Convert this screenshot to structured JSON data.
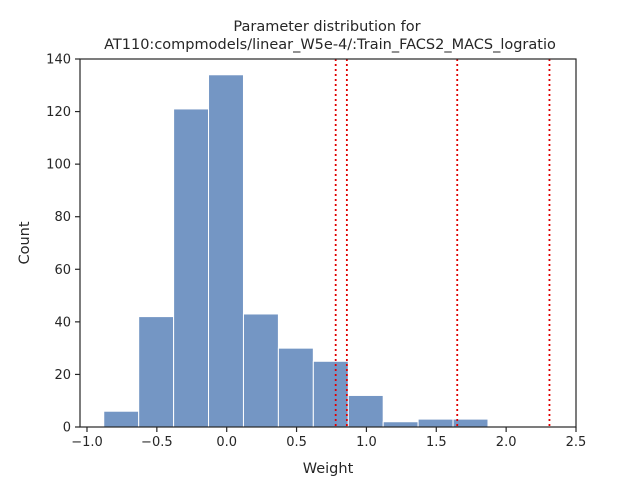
{
  "chart_data": {
    "type": "bar",
    "title": "Parameter distribution for",
    "subtitle": "AT110:compmodels/linear_W5e-4/:Train_FACS2_MACS_logratio",
    "xlabel": "Weight",
    "ylabel": "Count",
    "xlim": [
      -1.05,
      2.5
    ],
    "ylim": [
      0,
      140
    ],
    "xticks": [
      -1.0,
      -0.5,
      0.0,
      0.5,
      1.0,
      1.5,
      2.0,
      2.5
    ],
    "xtick_labels": [
      "−1.0",
      "−0.5",
      "0.0",
      "0.5",
      "1.0",
      "1.5",
      "2.0",
      "2.5"
    ],
    "yticks": [
      0,
      20,
      40,
      60,
      80,
      100,
      120,
      140
    ],
    "ytick_labels": [
      "0",
      "20",
      "40",
      "60",
      "80",
      "100",
      "120",
      "140"
    ],
    "bin_edges": [
      -0.88,
      -0.63,
      -0.38,
      -0.13,
      0.12,
      0.37,
      0.62,
      0.87,
      1.12,
      1.37,
      1.62,
      1.87,
      2.12,
      2.37
    ],
    "values": [
      6,
      42,
      121,
      134,
      43,
      30,
      25,
      12,
      2,
      3,
      3,
      0,
      0
    ],
    "bar_color": "#7496c4",
    "vlines": [
      0.78,
      0.86,
      1.65,
      2.31
    ],
    "vline_color": "#e00000",
    "vline_style": "dotted",
    "grid": false,
    "legend": "none"
  }
}
